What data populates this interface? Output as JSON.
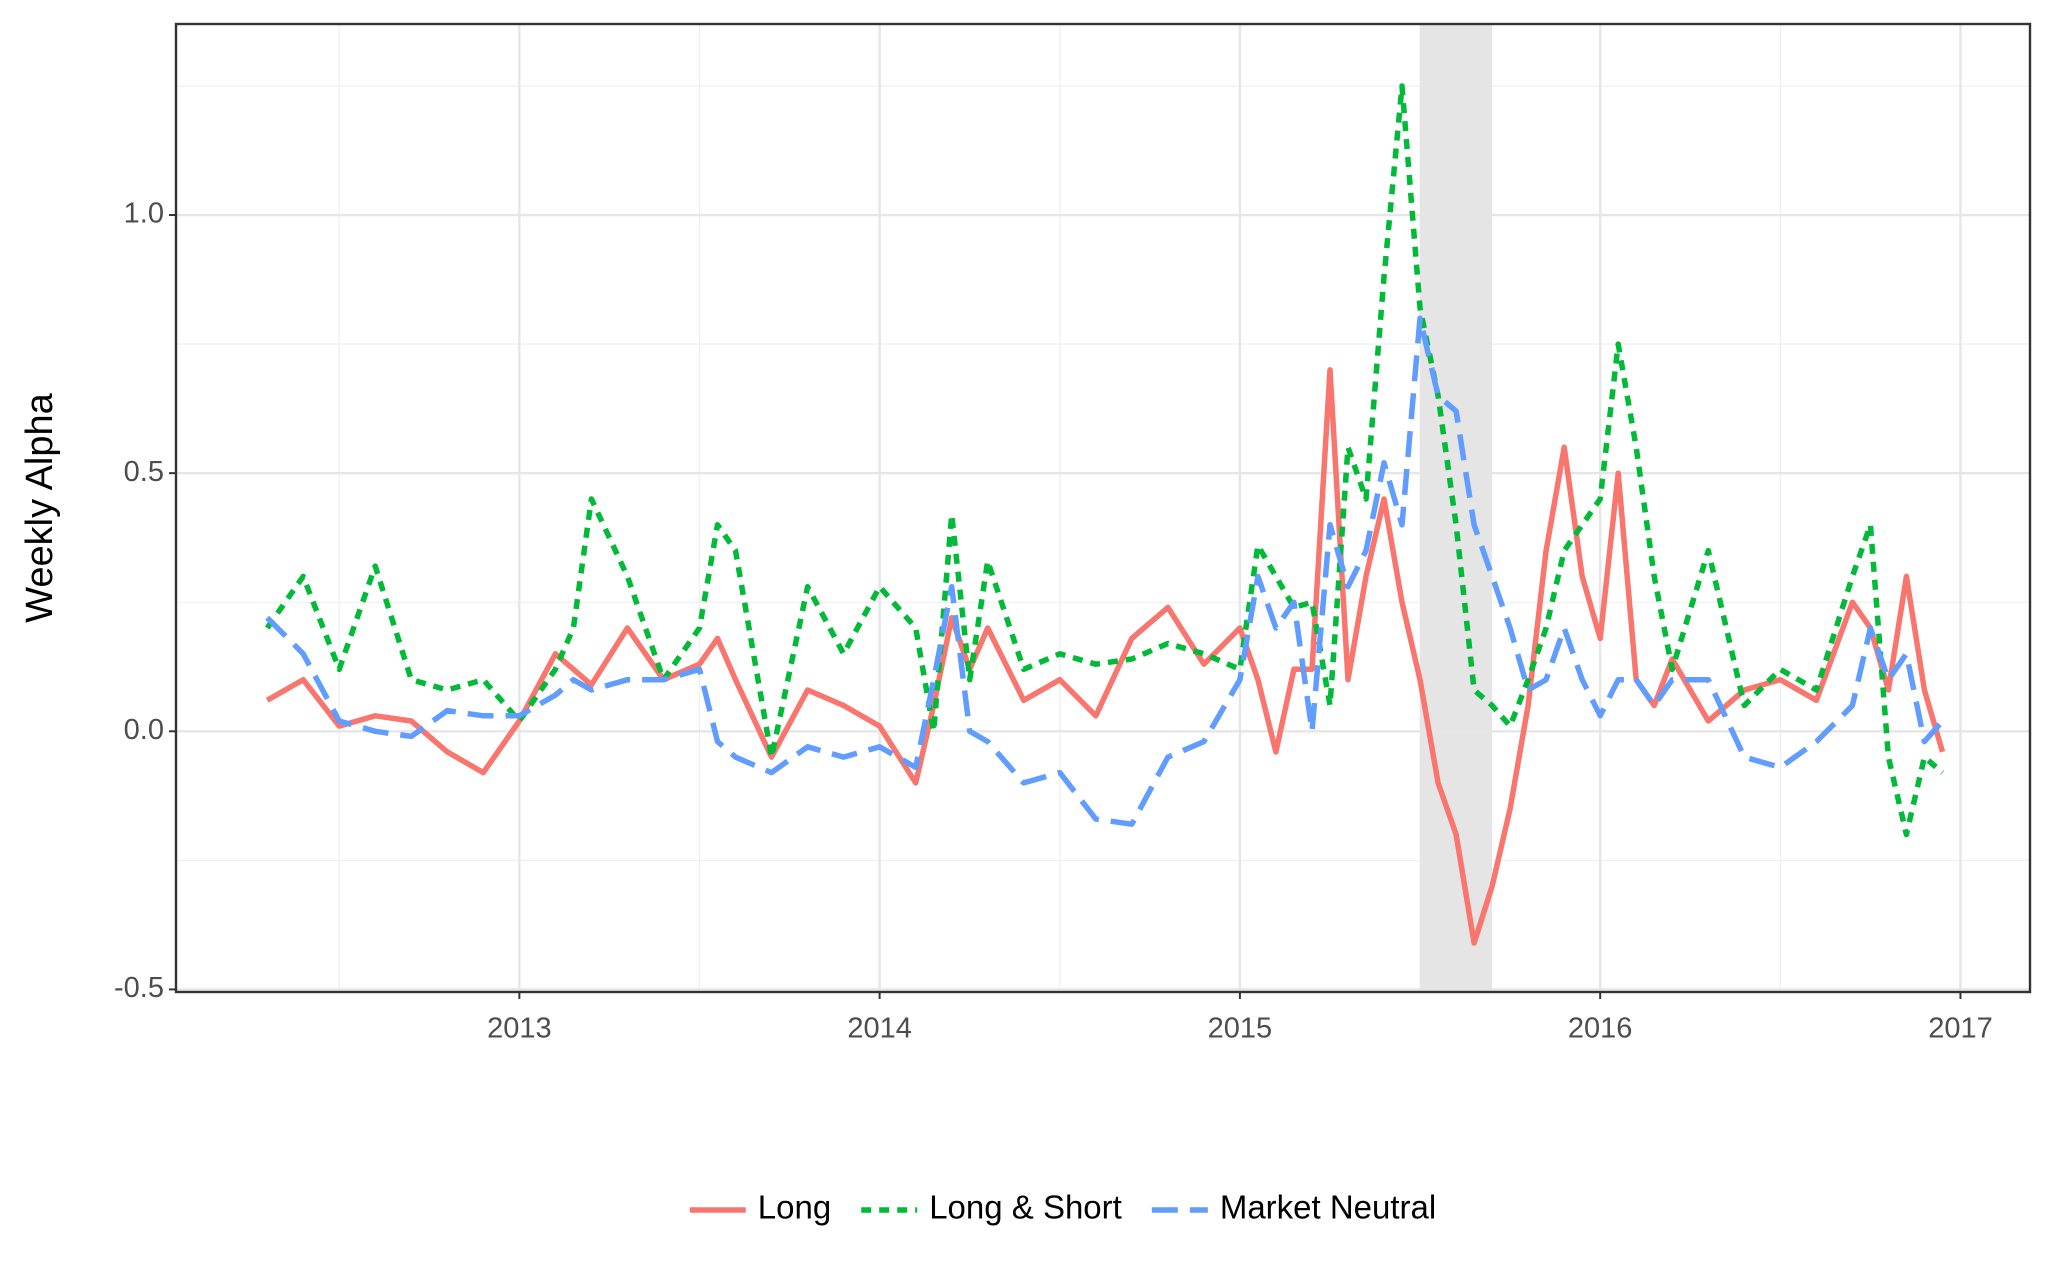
{
  "chart_data": {
    "type": "line",
    "y_label": "Weekly Alpha",
    "x": [
      2012.3,
      2012.4,
      2012.5,
      2012.6,
      2012.7,
      2012.8,
      2012.9,
      2013.0,
      2013.1,
      2013.15,
      2013.2,
      2013.3,
      2013.4,
      2013.5,
      2013.55,
      2013.6,
      2013.7,
      2013.8,
      2013.9,
      2014.0,
      2014.1,
      2014.15,
      2014.2,
      2014.25,
      2014.3,
      2014.4,
      2014.5,
      2014.6,
      2014.7,
      2014.8,
      2014.9,
      2015.0,
      2015.05,
      2015.1,
      2015.15,
      2015.2,
      2015.25,
      2015.3,
      2015.35,
      2015.4,
      2015.45,
      2015.5,
      2015.55,
      2015.6,
      2015.65,
      2015.7,
      2015.75,
      2015.8,
      2015.85,
      2015.9,
      2015.95,
      2016.0,
      2016.05,
      2016.1,
      2016.15,
      2016.2,
      2016.3,
      2016.4,
      2016.5,
      2016.6,
      2016.7,
      2016.75,
      2016.8,
      2016.85,
      2016.9,
      2016.95
    ],
    "series": [
      {
        "name": "Long",
        "color": "#F8766D",
        "dash": "solid",
        "values": [
          0.06,
          0.1,
          0.01,
          0.03,
          0.02,
          -0.04,
          -0.08,
          0.02,
          0.15,
          0.12,
          0.09,
          0.2,
          0.1,
          0.13,
          0.18,
          0.1,
          -0.05,
          0.08,
          0.05,
          0.01,
          -0.1,
          0.05,
          0.22,
          0.12,
          0.2,
          0.06,
          0.1,
          0.03,
          0.18,
          0.24,
          0.13,
          0.2,
          0.1,
          -0.04,
          0.12,
          0.12,
          0.7,
          0.1,
          0.3,
          0.45,
          0.25,
          0.1,
          -0.1,
          -0.2,
          -0.41,
          -0.3,
          -0.15,
          0.05,
          0.35,
          0.55,
          0.3,
          0.18,
          0.5,
          0.1,
          0.05,
          0.14,
          0.02,
          0.08,
          0.1,
          0.06,
          0.25,
          0.2,
          0.08,
          0.3,
          0.08,
          -0.04
        ]
      },
      {
        "name": "Long & Short",
        "color": "#00BA38",
        "dash": "dotted",
        "values": [
          0.2,
          0.3,
          0.12,
          0.32,
          0.1,
          0.08,
          0.1,
          0.02,
          0.12,
          0.2,
          0.45,
          0.3,
          0.1,
          0.2,
          0.4,
          0.35,
          -0.05,
          0.28,
          0.15,
          0.28,
          0.2,
          0.0,
          0.42,
          0.1,
          0.33,
          0.12,
          0.15,
          0.13,
          0.14,
          0.17,
          0.15,
          0.12,
          0.36,
          0.3,
          0.24,
          0.25,
          0.05,
          0.55,
          0.45,
          0.88,
          1.25,
          0.82,
          0.65,
          0.4,
          0.08,
          0.05,
          0.01,
          0.1,
          0.2,
          0.35,
          0.4,
          0.45,
          0.75,
          0.55,
          0.3,
          0.12,
          0.35,
          0.05,
          0.12,
          0.08,
          0.3,
          0.4,
          -0.05,
          -0.2,
          -0.05,
          -0.08
        ]
      },
      {
        "name": "Market Neutral",
        "color": "#619CFF",
        "dash": "dashed",
        "values": [
          0.22,
          0.15,
          0.02,
          0.0,
          -0.01,
          0.04,
          0.03,
          0.03,
          0.07,
          0.1,
          0.08,
          0.1,
          0.1,
          0.12,
          -0.02,
          -0.05,
          -0.08,
          -0.03,
          -0.05,
          -0.03,
          -0.07,
          0.1,
          0.28,
          0.0,
          -0.02,
          -0.1,
          -0.08,
          -0.17,
          -0.18,
          -0.05,
          -0.02,
          0.1,
          0.3,
          0.2,
          0.25,
          0.0,
          0.4,
          0.28,
          0.35,
          0.52,
          0.4,
          0.8,
          0.65,
          0.62,
          0.4,
          0.3,
          0.2,
          0.08,
          0.1,
          0.2,
          0.1,
          0.03,
          0.1,
          0.1,
          0.05,
          0.1,
          0.1,
          -0.05,
          -0.07,
          -0.02,
          0.05,
          0.2,
          0.1,
          0.15,
          -0.02,
          0.02
        ]
      }
    ],
    "highlight_xrange": [
      2015.5,
      2015.7
    ],
    "xlim": [
      2012.047,
      2017.193
    ],
    "xticks": [
      2013,
      2014,
      2015,
      2016,
      2017
    ],
    "ylim": [
      -0.505,
      1.37
    ],
    "yticks": [
      -0.5,
      {
        "value": 0,
        "label": "0.0"
      },
      0.5,
      {
        "value": 1,
        "label": "1.0"
      }
    ],
    "grid": true,
    "minor_grid": true,
    "legend": "bottom"
  }
}
